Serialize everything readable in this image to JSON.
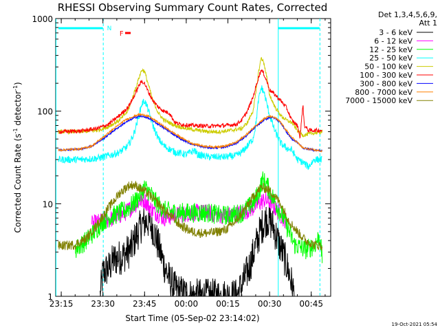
{
  "chart_data": {
    "type": "line",
    "title": "RHESSI Observing Summary Count Rates, Corrected",
    "xlabel": "Start Time (05-Sep-02 23:14:02)",
    "ylabel": "Corrected Count Rate (s",
    "ylabel_exp1": "-1",
    "ylabel_mid": " detector",
    "ylabel_exp2": "-1",
    "ylabel_end": ")",
    "y_scale": "log",
    "ylim": [
      1,
      1000
    ],
    "xlim": [
      -1,
      98
    ],
    "x_unit": "minutes after 23:14",
    "x_ticks": [
      {
        "t": 1,
        "label": "23:15"
      },
      {
        "t": 16,
        "label": "23:30"
      },
      {
        "t": 31,
        "label": "23:45"
      },
      {
        "t": 46,
        "label": "00:00"
      },
      {
        "t": 61,
        "label": "00:15"
      },
      {
        "t": 76,
        "label": "00:30"
      },
      {
        "t": 91,
        "label": "00:45"
      }
    ],
    "y_ticks": [
      {
        "v": 1,
        "label": "1"
      },
      {
        "v": 10,
        "label": "10"
      },
      {
        "v": 100,
        "label": "100"
      },
      {
        "v": 1000,
        "label": "1000"
      }
    ],
    "legend_header": [
      "Det 1,3,4,5,6,9,",
      "Att 1"
    ],
    "legend_position": "right",
    "series": [
      {
        "name": "3 - 6 keV",
        "color": "#000000",
        "points": [
          [
            15,
            1
          ],
          [
            16,
            1.8
          ],
          [
            18,
            2
          ],
          [
            20,
            2.5
          ],
          [
            23,
            2.7
          ],
          [
            26,
            3.2
          ],
          [
            28,
            4.5
          ],
          [
            30,
            6
          ],
          [
            32,
            6.5
          ],
          [
            34,
            5.5
          ],
          [
            36,
            3.5
          ],
          [
            38,
            2.2
          ],
          [
            40,
            1.5
          ],
          [
            42,
            1.2
          ],
          [
            44,
            1.1
          ],
          [
            48,
            1
          ],
          [
            64,
            1
          ],
          [
            66,
            1.3
          ],
          [
            69,
            2.2
          ],
          [
            71,
            3.5
          ],
          [
            73,
            5.5
          ],
          [
            75,
            7
          ],
          [
            77,
            6
          ],
          [
            79,
            4
          ],
          [
            81,
            2.8
          ],
          [
            83,
            1.8
          ],
          [
            85,
            1
          ]
        ]
      },
      {
        "name": "6 - 12 keV",
        "color": "#ff00ff",
        "points": [
          [
            12,
            6
          ],
          [
            16,
            6.5
          ],
          [
            20,
            7
          ],
          [
            24,
            8
          ],
          [
            27,
            9.5
          ],
          [
            29,
            10.5
          ],
          [
            31,
            11
          ],
          [
            33,
            9
          ],
          [
            35,
            8
          ],
          [
            38,
            7
          ],
          [
            42,
            7.5
          ],
          [
            48,
            8
          ],
          [
            54,
            8
          ],
          [
            58,
            7.5
          ],
          [
            62,
            7.5
          ],
          [
            66,
            8
          ],
          [
            70,
            9
          ],
          [
            72,
            10
          ],
          [
            74,
            11
          ],
          [
            76,
            10.5
          ],
          [
            78,
            9
          ],
          [
            80,
            7.5
          ],
          [
            82,
            6.5
          ]
        ]
      },
      {
        "name": "12 - 25 keV",
        "color": "#00ff00",
        "points": [
          [
            6,
            3.2
          ],
          [
            10,
            4
          ],
          [
            13,
            5
          ],
          [
            16,
            6.5
          ],
          [
            20,
            7.5
          ],
          [
            24,
            8.5
          ],
          [
            27,
            10
          ],
          [
            29,
            12
          ],
          [
            31,
            15
          ],
          [
            33,
            13
          ],
          [
            35,
            10.5
          ],
          [
            38,
            8.5
          ],
          [
            42,
            8
          ],
          [
            48,
            8
          ],
          [
            54,
            8
          ],
          [
            58,
            7.5
          ],
          [
            62,
            7.5
          ],
          [
            66,
            8
          ],
          [
            70,
            10
          ],
          [
            72,
            13
          ],
          [
            73.5,
            18
          ],
          [
            75,
            16
          ],
          [
            77,
            12
          ],
          [
            79,
            9
          ],
          [
            81,
            7
          ],
          [
            83,
            5
          ],
          [
            85,
            3.6
          ],
          [
            89,
            3.2
          ],
          [
            92,
            3.5
          ],
          [
            94,
            4.5
          ],
          [
            95,
            2.5
          ]
        ]
      },
      {
        "name": "25 - 50 keV",
        "color": "#00ffff",
        "points": [
          [
            0,
            30
          ],
          [
            8,
            30
          ],
          [
            14,
            31
          ],
          [
            18,
            33
          ],
          [
            22,
            36
          ],
          [
            25,
            42
          ],
          [
            27,
            55
          ],
          [
            29,
            90
          ],
          [
            30,
            120
          ],
          [
            31,
            130
          ],
          [
            32,
            110
          ],
          [
            34,
            70
          ],
          [
            36,
            50
          ],
          [
            38,
            42
          ],
          [
            42,
            36
          ],
          [
            46,
            34
          ],
          [
            49,
            38
          ],
          [
            50,
            34
          ],
          [
            54,
            32
          ],
          [
            60,
            32
          ],
          [
            64,
            33
          ],
          [
            66,
            36
          ],
          [
            68,
            42
          ],
          [
            70,
            50
          ],
          [
            71,
            70
          ],
          [
            72,
            130
          ],
          [
            73,
            180
          ],
          [
            74,
            160
          ],
          [
            75,
            120
          ],
          [
            76,
            90
          ],
          [
            78,
            60
          ],
          [
            80,
            45
          ],
          [
            82,
            40
          ],
          [
            84,
            38
          ],
          [
            86,
            30
          ],
          [
            88,
            28
          ],
          [
            90,
            25
          ],
          [
            92,
            30
          ],
          [
            95,
            30
          ]
        ]
      },
      {
        "name": "50 - 100 keV",
        "color": "#cccc00",
        "points": [
          [
            0,
            60
          ],
          [
            8,
            60
          ],
          [
            14,
            62
          ],
          [
            18,
            68
          ],
          [
            22,
            80
          ],
          [
            25,
            100
          ],
          [
            27,
            150
          ],
          [
            29,
            230
          ],
          [
            30,
            280
          ],
          [
            31,
            270
          ],
          [
            32,
            210
          ],
          [
            34,
            130
          ],
          [
            36,
            95
          ],
          [
            38,
            80
          ],
          [
            42,
            70
          ],
          [
            46,
            65
          ],
          [
            50,
            62
          ],
          [
            54,
            60
          ],
          [
            58,
            60
          ],
          [
            62,
            62
          ],
          [
            66,
            65
          ],
          [
            68,
            75
          ],
          [
            70,
            100
          ],
          [
            71,
            150
          ],
          [
            72,
            260
          ],
          [
            73,
            380
          ],
          [
            74,
            330
          ],
          [
            75,
            230
          ],
          [
            76,
            150
          ],
          [
            78,
            110
          ],
          [
            80,
            90
          ],
          [
            82,
            80
          ],
          [
            84,
            75
          ],
          [
            86,
            62
          ],
          [
            88,
            55
          ],
          [
            92,
            58
          ],
          [
            95,
            60
          ]
        ]
      },
      {
        "name": "100 - 300 keV",
        "color": "#ff0000",
        "points": [
          [
            0,
            60
          ],
          [
            8,
            61
          ],
          [
            14,
            65
          ],
          [
            18,
            72
          ],
          [
            22,
            90
          ],
          [
            25,
            110
          ],
          [
            27,
            140
          ],
          [
            29,
            190
          ],
          [
            30,
            210
          ],
          [
            31,
            200
          ],
          [
            32,
            170
          ],
          [
            34,
            130
          ],
          [
            36,
            110
          ],
          [
            38,
            100
          ],
          [
            40,
            95
          ],
          [
            42,
            75
          ],
          [
            44,
            72
          ],
          [
            48,
            70
          ],
          [
            54,
            69
          ],
          [
            60,
            70
          ],
          [
            64,
            72
          ],
          [
            66,
            80
          ],
          [
            68,
            100
          ],
          [
            70,
            140
          ],
          [
            71,
            180
          ],
          [
            72,
            230
          ],
          [
            73,
            280
          ],
          [
            74,
            250
          ],
          [
            75,
            210
          ],
          [
            76,
            170
          ],
          [
            78,
            150
          ],
          [
            80,
            130
          ],
          [
            82,
            110
          ],
          [
            84,
            80
          ],
          [
            86,
            70
          ],
          [
            87,
            52
          ],
          [
            88,
            120
          ],
          [
            88.5,
            70
          ],
          [
            90,
            62
          ],
          [
            95,
            62
          ]
        ]
      },
      {
        "name": "300 - 800 keV",
        "color": "#0000ff",
        "points": [
          [
            0,
            38
          ],
          [
            8,
            39
          ],
          [
            12,
            42
          ],
          [
            16,
            50
          ],
          [
            20,
            62
          ],
          [
            24,
            75
          ],
          [
            27,
            84
          ],
          [
            29,
            88
          ],
          [
            31,
            87
          ],
          [
            33,
            82
          ],
          [
            36,
            72
          ],
          [
            40,
            60
          ],
          [
            44,
            50
          ],
          [
            48,
            44
          ],
          [
            52,
            41
          ],
          [
            56,
            40
          ],
          [
            60,
            41
          ],
          [
            64,
            45
          ],
          [
            68,
            55
          ],
          [
            71,
            68
          ],
          [
            74,
            80
          ],
          [
            76,
            86
          ],
          [
            78,
            84
          ],
          [
            80,
            75
          ],
          [
            82,
            60
          ],
          [
            84,
            50
          ],
          [
            86,
            46
          ],
          [
            88,
            40
          ],
          [
            92,
            38
          ],
          [
            95,
            37
          ]
        ]
      },
      {
        "name": "800 - 7000 keV",
        "color": "#ff8000",
        "points": [
          [
            0,
            38
          ],
          [
            8,
            39
          ],
          [
            12,
            42
          ],
          [
            16,
            52
          ],
          [
            20,
            65
          ],
          [
            24,
            80
          ],
          [
            27,
            88
          ],
          [
            29,
            92
          ],
          [
            31,
            91
          ],
          [
            33,
            86
          ],
          [
            36,
            75
          ],
          [
            40,
            62
          ],
          [
            44,
            52
          ],
          [
            48,
            45
          ],
          [
            52,
            42
          ],
          [
            56,
            41
          ],
          [
            60,
            42
          ],
          [
            64,
            46
          ],
          [
            68,
            57
          ],
          [
            71,
            70
          ],
          [
            74,
            83
          ],
          [
            76,
            88
          ],
          [
            78,
            85
          ],
          [
            80,
            76
          ],
          [
            82,
            62
          ],
          [
            84,
            52
          ],
          [
            86,
            46
          ],
          [
            88,
            40
          ],
          [
            92,
            38
          ],
          [
            95,
            37
          ]
        ]
      },
      {
        "name": "7000 - 15000 keV",
        "color": "#808000",
        "points": [
          [
            0,
            3.5
          ],
          [
            6,
            3.6
          ],
          [
            10,
            4.2
          ],
          [
            14,
            6
          ],
          [
            18,
            9
          ],
          [
            22,
            13
          ],
          [
            25,
            15.5
          ],
          [
            27,
            16
          ],
          [
            29,
            15
          ],
          [
            32,
            13
          ],
          [
            36,
            10
          ],
          [
            40,
            7.5
          ],
          [
            44,
            5.8
          ],
          [
            48,
            5
          ],
          [
            52,
            4.8
          ],
          [
            56,
            4.9
          ],
          [
            60,
            5.2
          ],
          [
            64,
            6.5
          ],
          [
            68,
            9.5
          ],
          [
            71,
            13
          ],
          [
            73,
            15
          ],
          [
            75,
            14.5
          ],
          [
            77,
            13
          ],
          [
            80,
            10
          ],
          [
            83,
            6.5
          ],
          [
            86,
            5
          ],
          [
            89,
            4
          ],
          [
            92,
            3.6
          ],
          [
            95,
            3.5
          ]
        ]
      }
    ],
    "annotations": {
      "attenuator_bars": [
        [
          0,
          16
        ],
        [
          79,
          94
        ]
      ],
      "night_label": "N",
      "flare_label": "F",
      "flare_segment": [
        24,
        26
      ]
    }
  },
  "footer_timestamp": "19-Oct-2021 05:54"
}
